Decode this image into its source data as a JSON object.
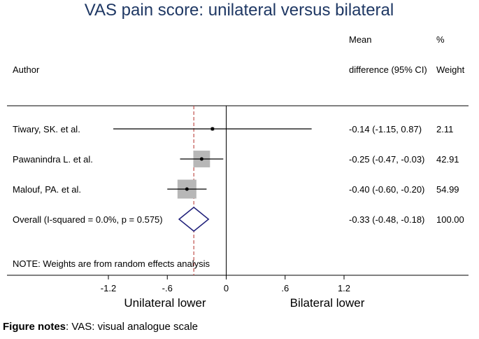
{
  "chart_data": {
    "type": "forest",
    "title": "VAS pain score: unilateral versus bilateral",
    "columns": {
      "author": "Author",
      "md_line1": "Mean",
      "md_line2": "difference (95% CI)",
      "weight_line1": "%",
      "weight_line2": "Weight"
    },
    "studies": [
      {
        "label": "Tiwary, SK. et al.",
        "estimate": -0.14,
        "lower": -1.15,
        "upper": 0.87,
        "ci_text": "-0.14 (-1.15, 0.87)",
        "weight": 2.11,
        "weight_text": "2.11"
      },
      {
        "label": "Pawanindra L. et al.",
        "estimate": -0.25,
        "lower": -0.47,
        "upper": -0.03,
        "ci_text": "-0.25 (-0.47, -0.03)",
        "weight": 42.91,
        "weight_text": "42.91"
      },
      {
        "label": "Malouf, PA. et al.",
        "estimate": -0.4,
        "lower": -0.6,
        "upper": -0.2,
        "ci_text": "-0.40 (-0.60, -0.20)",
        "weight": 54.99,
        "weight_text": "54.99"
      }
    ],
    "overall": {
      "label": "Overall  (I-squared = 0.0%, p = 0.575)",
      "estimate": -0.33,
      "lower": -0.48,
      "upper": -0.18,
      "ci_text": "-0.33 (-0.48, -0.18)",
      "weight_text": "100.00"
    },
    "note": "NOTE: Weights are from random effects analysis",
    "xticks": [
      "-1.2",
      "-.6",
      "0",
      ".6",
      "1.2"
    ],
    "xtick_values": [
      -1.2,
      -0.6,
      0,
      0.6,
      1.2
    ],
    "xlim": [
      -1.2,
      1.2
    ],
    "null_value": 0,
    "xlabel_left": "Unilateral lower",
    "xlabel_right": "Bilateral lower",
    "colors": {
      "title": "#1f3864",
      "box": "#b7b7b7",
      "diamond": "#1f1f7a",
      "overall_line": "#c0504d"
    }
  },
  "figure_notes": {
    "label": "Figure notes",
    "text": ": VAS: visual analogue scale"
  }
}
